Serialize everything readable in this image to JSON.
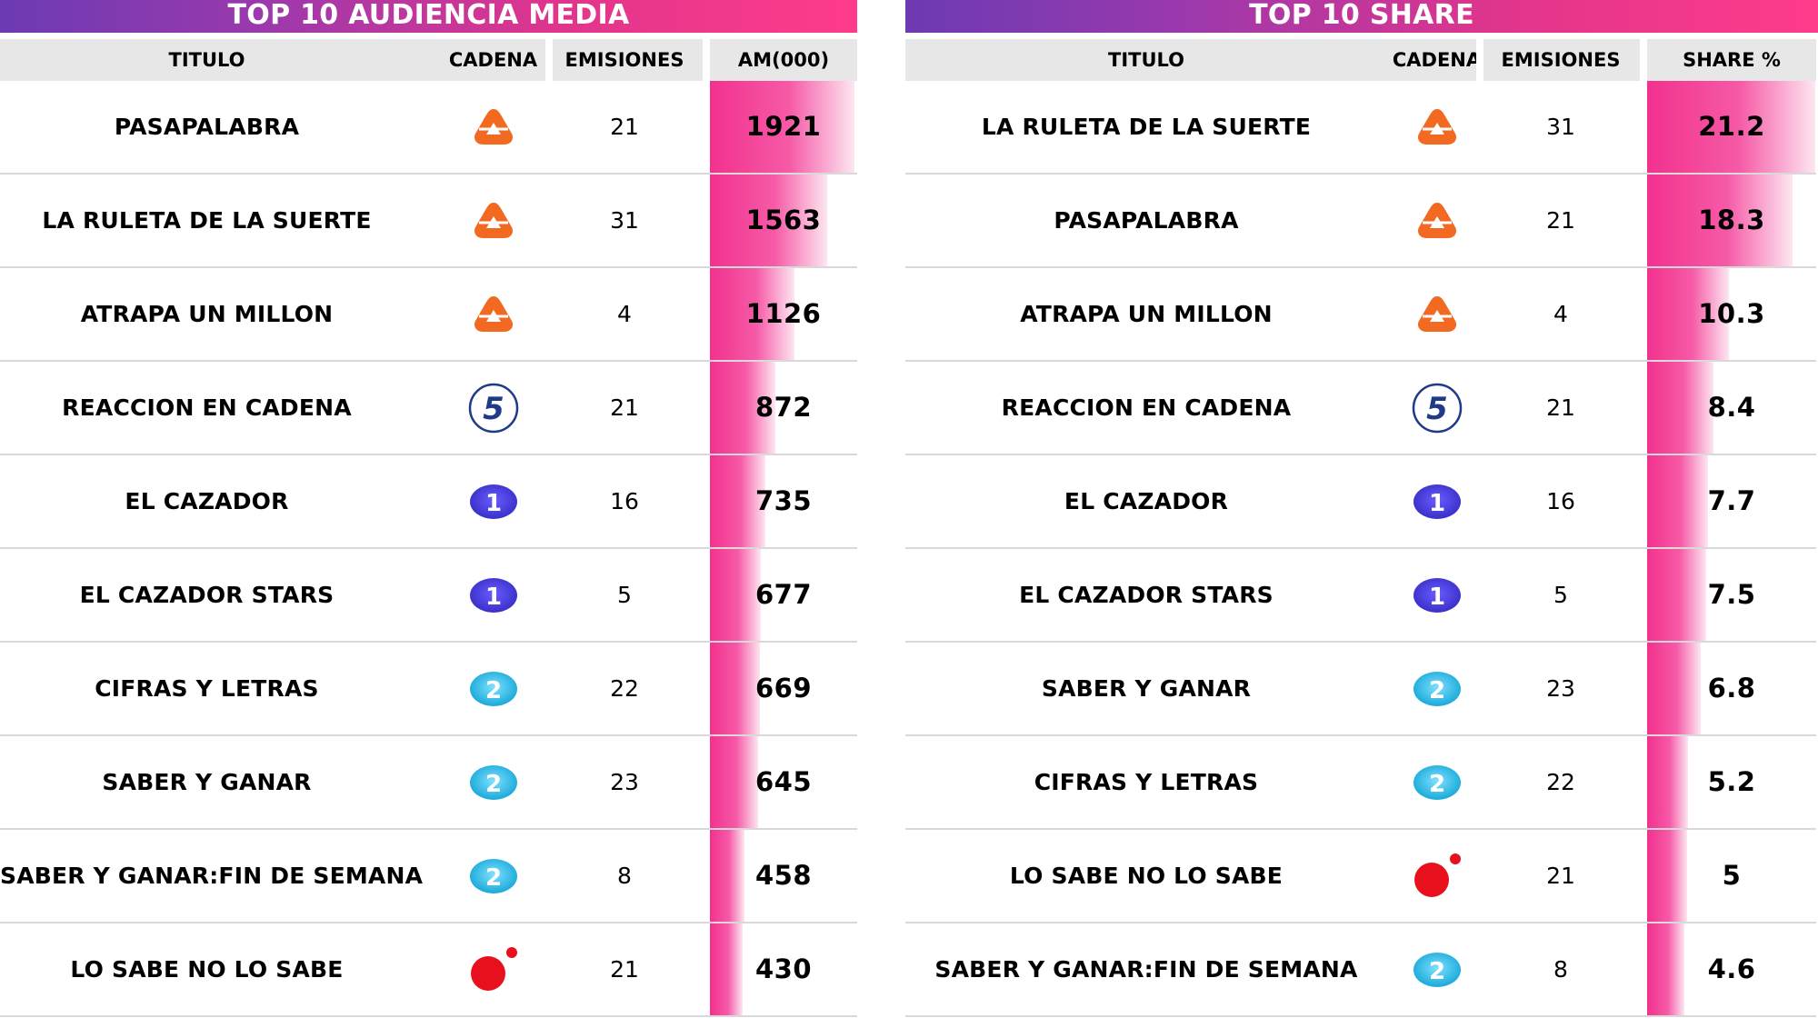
{
  "colors": {
    "bar_start": "#f2318e",
    "bar_end": "#fde6f1",
    "title_start": "#6c3ab3",
    "title_end": "#ff3b8b",
    "antena3": "#f26a21",
    "tele5": "#1f3a8a",
    "la1": "#3a2fc9",
    "la2": "#19a9d9",
    "trece": "#e8101c"
  },
  "audiencia": {
    "title": "TOP 10 AUDIENCIA MEDIA",
    "headers": {
      "titulo": "TITULO",
      "cadena": "CADENA",
      "emisiones": "EMISIONES",
      "valor": "AM(000)"
    },
    "bar_max": 1921,
    "rows": [
      {
        "titulo": "PASAPALABRA",
        "cadena": "antena3-logo-icon",
        "emisiones": "21",
        "valor": "1921",
        "value": 1921
      },
      {
        "titulo": "LA RULETA DE LA SUERTE",
        "cadena": "antena3-logo-icon",
        "emisiones": "31",
        "valor": "1563",
        "value": 1563
      },
      {
        "titulo": "ATRAPA UN MILLON",
        "cadena": "antena3-logo-icon",
        "emisiones": "4",
        "valor": "1126",
        "value": 1126
      },
      {
        "titulo": "REACCION EN CADENA",
        "cadena": "telecinco-logo-icon",
        "emisiones": "21",
        "valor": "872",
        "value": 872
      },
      {
        "titulo": "EL CAZADOR",
        "cadena": "la1-logo-icon",
        "emisiones": "16",
        "valor": "735",
        "value": 735
      },
      {
        "titulo": "EL CAZADOR STARS",
        "cadena": "la1-logo-icon",
        "emisiones": "5",
        "valor": "677",
        "value": 677
      },
      {
        "titulo": "CIFRAS Y LETRAS",
        "cadena": "la2-logo-icon",
        "emisiones": "22",
        "valor": "669",
        "value": 669
      },
      {
        "titulo": "SABER Y GANAR",
        "cadena": "la2-logo-icon",
        "emisiones": "23",
        "valor": "645",
        "value": 645
      },
      {
        "titulo": "SABER Y GANAR:FIN DE SEMANA",
        "cadena": "la2-logo-icon",
        "emisiones": "8",
        "valor": "458",
        "value": 458
      },
      {
        "titulo": "LO SABE NO LO SABE",
        "cadena": "trece-logo-icon",
        "emisiones": "21",
        "valor": "430",
        "value": 430
      }
    ]
  },
  "share": {
    "title": "TOP 10 SHARE",
    "headers": {
      "titulo": "TITULO",
      "cadena": "CADENA",
      "emisiones": "EMISIONES",
      "valor": "SHARE %"
    },
    "bar_max": 21.2,
    "rows": [
      {
        "titulo": "LA RULETA DE LA SUERTE",
        "cadena": "antena3-logo-icon",
        "emisiones": "31",
        "valor": "21.2",
        "value": 21.2
      },
      {
        "titulo": "PASAPALABRA",
        "cadena": "antena3-logo-icon",
        "emisiones": "21",
        "valor": "18.3",
        "value": 18.3
      },
      {
        "titulo": "ATRAPA UN MILLON",
        "cadena": "antena3-logo-icon",
        "emisiones": "4",
        "valor": "10.3",
        "value": 10.3
      },
      {
        "titulo": "REACCION EN CADENA",
        "cadena": "telecinco-logo-icon",
        "emisiones": "21",
        "valor": "8.4",
        "value": 8.4
      },
      {
        "titulo": "EL CAZADOR",
        "cadena": "la1-logo-icon",
        "emisiones": "16",
        "valor": "7.7",
        "value": 7.7
      },
      {
        "titulo": "EL CAZADOR STARS",
        "cadena": "la1-logo-icon",
        "emisiones": "5",
        "valor": "7.5",
        "value": 7.5
      },
      {
        "titulo": "SABER Y GANAR",
        "cadena": "la2-logo-icon",
        "emisiones": "23",
        "valor": "6.8",
        "value": 6.8
      },
      {
        "titulo": "CIFRAS Y LETRAS",
        "cadena": "la2-logo-icon",
        "emisiones": "22",
        "valor": "5.2",
        "value": 5.2
      },
      {
        "titulo": "LO SABE NO LO SABE",
        "cadena": "trece-logo-icon",
        "emisiones": "21",
        "valor": "5",
        "value": 5
      },
      {
        "titulo": "SABER Y GANAR:FIN DE SEMANA",
        "cadena": "la2-logo-icon",
        "emisiones": "8",
        "valor": "4.6",
        "value": 4.6
      }
    ]
  },
  "chart_data": [
    {
      "type": "table",
      "title": "TOP 10 AUDIENCIA MEDIA",
      "columns": [
        "TITULO",
        "CADENA",
        "EMISIONES",
        "AM(000)"
      ],
      "categories": [
        "PASAPALABRA",
        "LA RULETA DE LA SUERTE",
        "ATRAPA UN MILLON",
        "REACCION EN CADENA",
        "EL CAZADOR",
        "EL CAZADOR STARS",
        "CIFRAS Y LETRAS",
        "SABER Y GANAR",
        "SABER Y GANAR:FIN DE SEMANA",
        "LO SABE NO LO SABE"
      ],
      "emisiones": [
        21,
        31,
        4,
        21,
        16,
        5,
        22,
        23,
        8,
        21
      ],
      "values": [
        1921,
        1563,
        1126,
        872,
        735,
        677,
        669,
        645,
        458,
        430
      ]
    },
    {
      "type": "table",
      "title": "TOP 10 SHARE",
      "columns": [
        "TITULO",
        "CADENA",
        "EMISIONES",
        "SHARE %"
      ],
      "categories": [
        "LA RULETA DE LA SUERTE",
        "PASAPALABRA",
        "ATRAPA UN MILLON",
        "REACCION EN CADENA",
        "EL CAZADOR",
        "EL CAZADOR STARS",
        "SABER Y GANAR",
        "CIFRAS Y LETRAS",
        "LO SABE NO LO SABE",
        "SABER Y GANAR:FIN DE SEMANA"
      ],
      "emisiones": [
        31,
        21,
        4,
        21,
        16,
        5,
        23,
        22,
        21,
        8
      ],
      "values": [
        21.2,
        18.3,
        10.3,
        8.4,
        7.7,
        7.5,
        6.8,
        5.2,
        5,
        4.6
      ]
    }
  ]
}
